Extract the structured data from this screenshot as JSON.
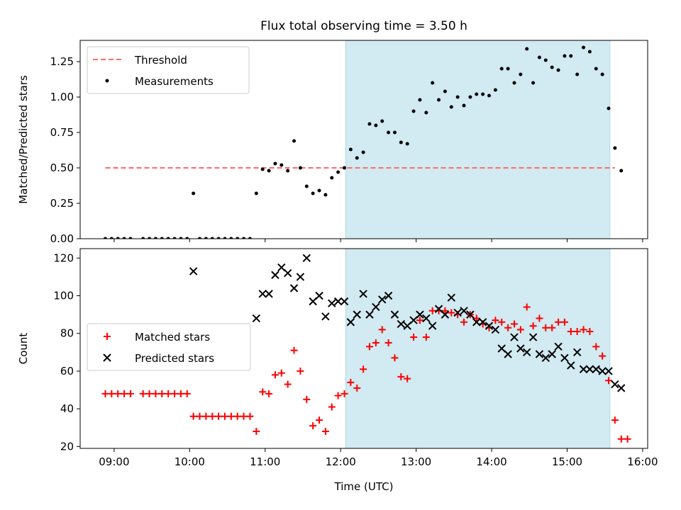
{
  "title": "Flux total observing time = 3.50 h",
  "colors": {
    "threshold": "#ff6b6b",
    "matched": "#ff0000",
    "predicted": "#000000",
    "window": "#add8e6"
  },
  "chart_data": [
    {
      "type": "scatter",
      "ylabel": "Matched/Predicted stars",
      "xlim": [
        "08:33",
        "16:04"
      ],
      "ylim": [
        0,
        1.4
      ],
      "yticks": [
        0.0,
        0.25,
        0.5,
        0.75,
        1.0,
        1.25
      ],
      "shaded_window": [
        "12:04",
        "15:34"
      ],
      "legend": "top-left",
      "series": [
        {
          "name": "Threshold",
          "style": "dashed-line",
          "x": [
            "08:53",
            "15:38"
          ],
          "y": [
            0.5,
            0.5
          ]
        },
        {
          "name": "Measurements",
          "style": "dot",
          "x": [
            "08:53",
            "08:58",
            "09:03",
            "09:08",
            "09:13",
            "09:23",
            "09:28",
            "09:33",
            "09:38",
            "09:43",
            "09:48",
            "09:53",
            "09:58",
            "10:03",
            "10:08",
            "10:13",
            "10:18",
            "10:23",
            "10:28",
            "10:33",
            "10:38",
            "10:43",
            "10:48",
            "10:53",
            "10:58",
            "11:03",
            "11:08",
            "11:13",
            "11:18",
            "11:23",
            "11:28",
            "11:33",
            "11:38",
            "11:43",
            "11:48",
            "11:53",
            "11:58",
            "12:03",
            "12:08",
            "12:13",
            "12:18",
            "12:23",
            "12:28",
            "12:33",
            "12:38",
            "12:43",
            "12:48",
            "12:53",
            "12:58",
            "13:03",
            "13:08",
            "13:13",
            "13:18",
            "13:23",
            "13:28",
            "13:33",
            "13:38",
            "13:43",
            "13:48",
            "13:53",
            "13:58",
            "14:03",
            "14:08",
            "14:13",
            "14:18",
            "14:23",
            "14:28",
            "14:33",
            "14:38",
            "14:43",
            "14:48",
            "14:53",
            "14:58",
            "15:03",
            "15:08",
            "15:13",
            "15:18",
            "15:23",
            "15:28",
            "15:33",
            "15:38",
            "15:43"
          ],
          "y": [
            0,
            0,
            0,
            0,
            0,
            0,
            0,
            0,
            0,
            0,
            0,
            0,
            0,
            0.32,
            0,
            0,
            0,
            0,
            0,
            0,
            0,
            0,
            0,
            0.32,
            0.49,
            0.48,
            0.53,
            0.52,
            0.48,
            0.69,
            0.5,
            0.37,
            0.32,
            0.34,
            0.31,
            0.43,
            0.47,
            0.5,
            0.63,
            0.57,
            0.61,
            0.81,
            0.8,
            0.83,
            0.75,
            0.75,
            0.68,
            0.67,
            0.9,
            0.98,
            0.89,
            1.1,
            0.98,
            1.04,
            0.93,
            1.0,
            0.94,
            1.0,
            1.02,
            1.02,
            1.01,
            1.05,
            1.2,
            1.2,
            1.1,
            1.16,
            1.34,
            1.1,
            1.28,
            1.26,
            1.21,
            1.19,
            1.29,
            1.29,
            1.16,
            1.35,
            1.32,
            1.2,
            1.16,
            0.92,
            0.64,
            0.48
          ]
        }
      ]
    },
    {
      "type": "scatter",
      "ylabel": "Count",
      "xlabel": "Time (UTC)",
      "xlim": [
        "08:33",
        "16:04"
      ],
      "xticks": [
        "09:00",
        "10:00",
        "11:00",
        "12:00",
        "13:00",
        "14:00",
        "15:00",
        "16:00"
      ],
      "ylim": [
        19,
        125
      ],
      "yticks": [
        20,
        40,
        60,
        80,
        100,
        120
      ],
      "shaded_window": [
        "12:04",
        "15:34"
      ],
      "legend": "center-left",
      "series": [
        {
          "name": "Matched stars",
          "style": "plus",
          "x": [
            "08:53",
            "08:58",
            "09:03",
            "09:08",
            "09:13",
            "09:23",
            "09:28",
            "09:33",
            "09:38",
            "09:43",
            "09:48",
            "09:53",
            "09:58",
            "10:03",
            "10:08",
            "10:13",
            "10:18",
            "10:23",
            "10:28",
            "10:33",
            "10:38",
            "10:43",
            "10:48",
            "10:53",
            "10:58",
            "11:03",
            "11:08",
            "11:13",
            "11:18",
            "11:23",
            "11:28",
            "11:33",
            "11:38",
            "11:43",
            "11:48",
            "11:53",
            "11:58",
            "12:03",
            "12:08",
            "12:13",
            "12:18",
            "12:23",
            "12:28",
            "12:33",
            "12:38",
            "12:43",
            "12:48",
            "12:53",
            "12:58",
            "13:03",
            "13:08",
            "13:13",
            "13:18",
            "13:23",
            "13:28",
            "13:33",
            "13:38",
            "13:43",
            "13:48",
            "13:53",
            "13:58",
            "14:03",
            "14:08",
            "14:13",
            "14:18",
            "14:23",
            "14:28",
            "14:33",
            "14:38",
            "14:43",
            "14:48",
            "14:53",
            "14:58",
            "15:03",
            "15:08",
            "15:13",
            "15:18",
            "15:23",
            "15:28",
            "15:33",
            "15:38",
            "15:43",
            "15:48"
          ],
          "y": [
            48,
            48,
            48,
            48,
            48,
            48,
            48,
            48,
            48,
            48,
            48,
            48,
            48,
            36,
            36,
            36,
            36,
            36,
            36,
            36,
            36,
            36,
            36,
            28,
            49,
            48,
            58,
            59,
            53,
            71,
            60,
            45,
            31,
            34,
            28,
            41,
            47,
            48,
            54,
            51,
            61,
            73,
            75,
            82,
            75,
            67,
            57,
            56,
            78,
            87,
            78,
            92,
            92,
            92,
            91,
            90,
            86,
            90,
            88,
            85,
            83,
            87,
            86,
            83,
            85,
            82,
            94,
            84,
            88,
            83,
            83,
            86,
            86,
            81,
            81,
            82,
            81,
            73,
            68,
            55,
            34,
            24,
            24
          ]
        },
        {
          "name": "Predicted stars",
          "style": "x",
          "x": [
            "10:03",
            "10:53",
            "10:58",
            "11:03",
            "11:08",
            "11:13",
            "11:18",
            "11:23",
            "11:28",
            "11:33",
            "11:38",
            "11:43",
            "11:48",
            "11:53",
            "11:58",
            "12:03",
            "12:08",
            "12:13",
            "12:18",
            "12:23",
            "12:28",
            "12:33",
            "12:38",
            "12:43",
            "12:48",
            "12:53",
            "12:58",
            "13:03",
            "13:08",
            "13:13",
            "13:18",
            "13:23",
            "13:28",
            "13:33",
            "13:38",
            "13:43",
            "13:48",
            "13:53",
            "13:58",
            "14:03",
            "14:08",
            "14:13",
            "14:18",
            "14:23",
            "14:28",
            "14:33",
            "14:38",
            "14:43",
            "14:48",
            "14:53",
            "14:58",
            "15:03",
            "15:08",
            "15:13",
            "15:18",
            "15:23",
            "15:28",
            "15:33",
            "15:38",
            "15:43"
          ],
          "y": [
            113,
            88,
            101,
            101,
            111,
            115,
            112,
            104,
            110,
            120,
            97,
            100,
            89,
            96,
            97,
            97,
            86,
            90,
            101,
            90,
            94,
            98,
            100,
            90,
            85,
            84,
            87,
            90,
            88,
            84,
            93,
            90,
            99,
            91,
            92,
            90,
            86,
            86,
            84,
            82,
            72,
            69,
            78,
            72,
            70,
            78,
            69,
            67,
            69,
            73,
            67,
            63,
            70,
            61,
            61,
            61,
            60,
            60,
            53,
            51
          ]
        }
      ]
    }
  ]
}
